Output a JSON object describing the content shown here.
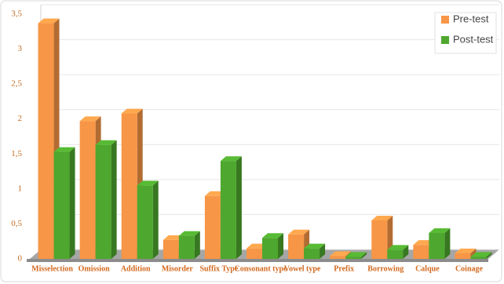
{
  "chart_data": {
    "type": "bar3d",
    "categories": [
      "Misselection",
      "Omission",
      "Addition",
      "Misorder",
      "Suffix Type",
      "Consonant type",
      "Vowel type",
      "Prefix",
      "Borrowing",
      "Calque",
      "Coinage"
    ],
    "series": [
      {
        "name": "Pre-test",
        "color": "#f79646",
        "values": [
          3.37,
          1.97,
          2.08,
          0.27,
          0.9,
          0.15,
          0.35,
          0.04,
          0.55,
          0.2,
          0.08
        ]
      },
      {
        "name": "Post-test",
        "color": "#4ea72e",
        "values": [
          1.53,
          1.63,
          1.05,
          0.33,
          1.4,
          0.3,
          0.15,
          0.03,
          0.13,
          0.37,
          0.03
        ]
      }
    ],
    "ylim": [
      0,
      3.5
    ],
    "yticks": [
      0,
      {
        "value": 0.5,
        "label": "0,5"
      },
      1,
      {
        "value": 1.5,
        "label": "1,5"
      },
      2,
      {
        "value": 2.5,
        "label": "2,5"
      },
      3,
      {
        "value": 3.5,
        "label": "3,5"
      }
    ],
    "grid": true,
    "legend": "upper right"
  }
}
